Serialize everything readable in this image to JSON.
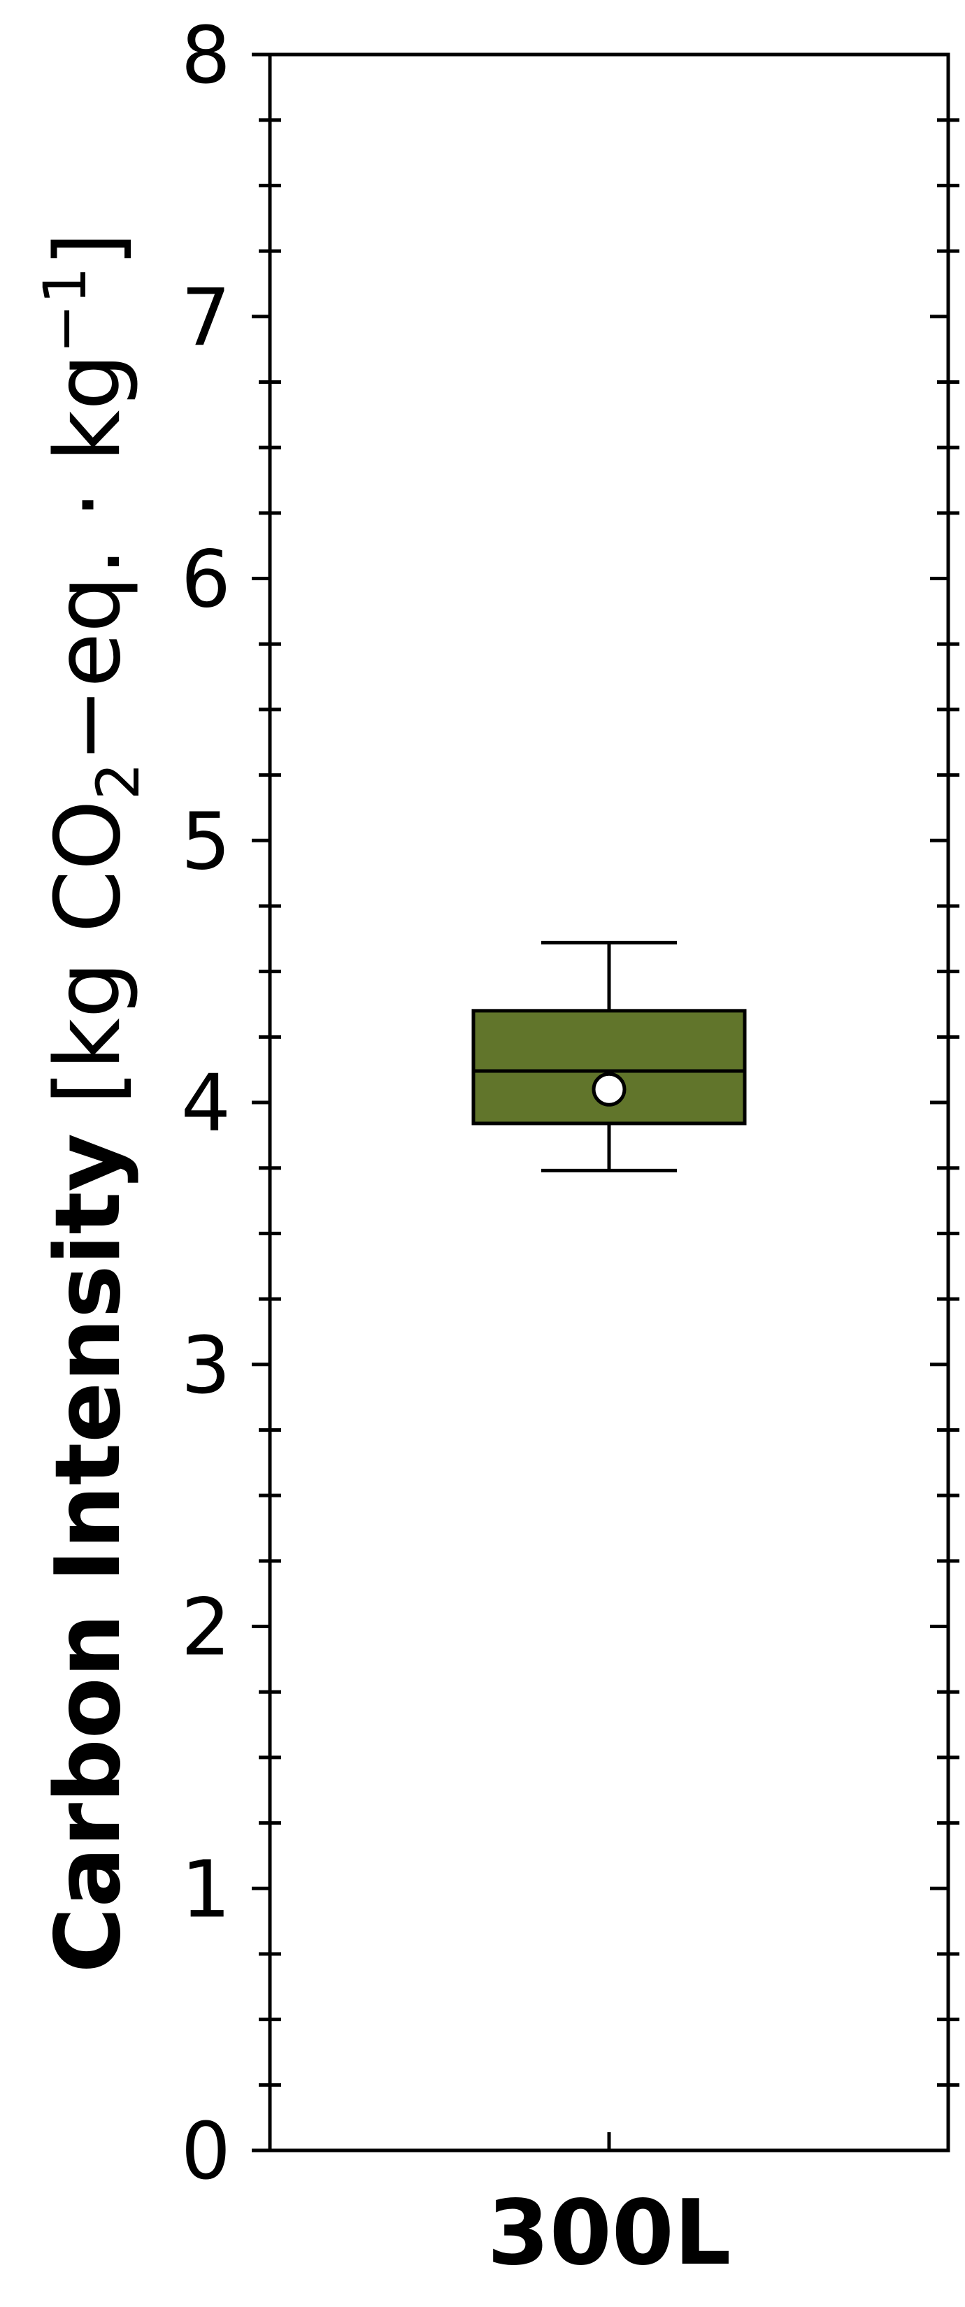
{
  "chart_data": {
    "type": "box",
    "categories": [
      "300L"
    ],
    "series": [
      {
        "category": "300L",
        "whisker_low": 3.74,
        "q1": 3.92,
        "median": 4.12,
        "q3": 4.35,
        "whisker_high": 4.61,
        "mean": 4.05
      }
    ],
    "ylabel": {
      "bold": "Carbon Intensity",
      "unit_open": " [kg CO",
      "sub": "2",
      "unit_mid": "−eq. · kg",
      "sup": "−1",
      "unit_close": "]"
    },
    "ylim": [
      0,
      8
    ],
    "yticks": [
      "0",
      "1",
      "2",
      "3",
      "4",
      "5",
      "6",
      "7",
      "8"
    ],
    "grid": false,
    "legend": "none",
    "colors": {
      "box_fill": "#61752b",
      "edge": "#000000",
      "mean_marker": "#ffffff"
    }
  }
}
